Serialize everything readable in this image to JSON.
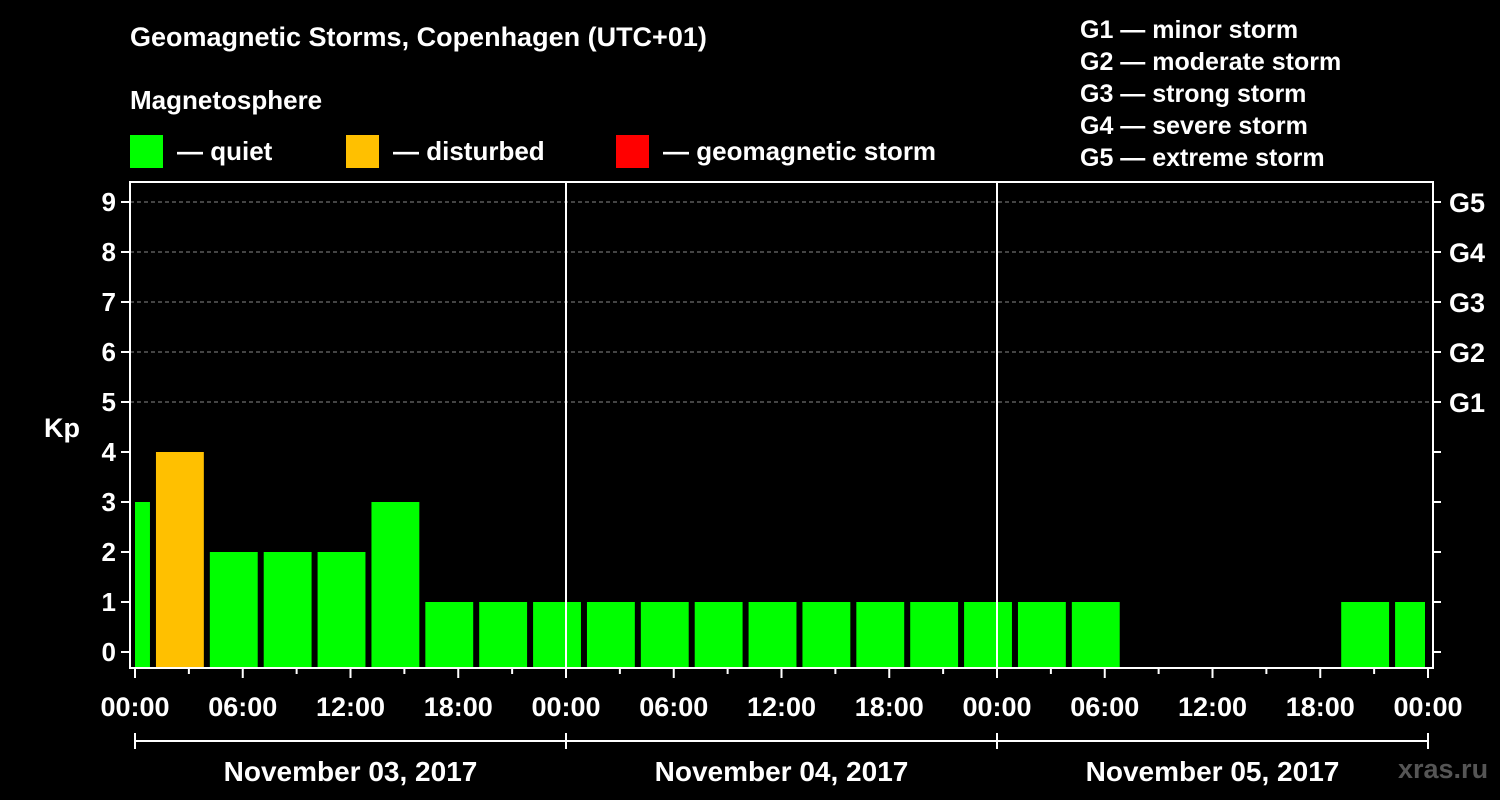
{
  "title": "Geomagnetic Storms, Copenhagen (UTC+01)",
  "subtitle": "Magnetosphere",
  "legend": [
    {
      "label": "— quiet",
      "color": "#00ff00"
    },
    {
      "label": "— disturbed",
      "color": "#ffc000"
    },
    {
      "label": "— geomagnetic storm",
      "color": "#ff0000"
    }
  ],
  "storm_scale": [
    "G1 — minor storm",
    "G2 — moderate storm",
    "G3 — strong storm",
    "G4 — severe storm",
    "G5 — extreme storm"
  ],
  "watermark": "xras.ru",
  "chart_data": {
    "type": "bar",
    "title": "Geomagnetic Storms, Copenhagen (UTC+01)",
    "ylabel": "Kp",
    "ylim": [
      0,
      9
    ],
    "yticks": [
      "0",
      "1",
      "2",
      "3",
      "4",
      "5",
      "6",
      "7",
      "8",
      "9"
    ],
    "right_tick_labels": [
      {
        "kp": 5,
        "label": "G1"
      },
      {
        "kp": 6,
        "label": "G2"
      },
      {
        "kp": 7,
        "label": "G3"
      },
      {
        "kp": 8,
        "label": "G4"
      },
      {
        "kp": 9,
        "label": "G5"
      }
    ],
    "x_range_hours": [
      0,
      72
    ],
    "x_tick_labels": [
      "00:00",
      "06:00",
      "12:00",
      "18:00",
      "00:00",
      "06:00",
      "12:00",
      "18:00",
      "00:00",
      "06:00",
      "12:00",
      "18:00",
      "00:00"
    ],
    "x_tick_step_hours": 6,
    "dates": [
      "November 03, 2017",
      "November 04, 2017",
      "November 05, 2017"
    ],
    "bars": [
      {
        "start_hour": 0,
        "end_hour": 1,
        "kp": 3,
        "status": "quiet"
      },
      {
        "start_hour": 1,
        "end_hour": 4,
        "kp": 4,
        "status": "disturbed"
      },
      {
        "start_hour": 4,
        "end_hour": 7,
        "kp": 2,
        "status": "quiet"
      },
      {
        "start_hour": 7,
        "end_hour": 10,
        "kp": 2,
        "status": "quiet"
      },
      {
        "start_hour": 10,
        "end_hour": 13,
        "kp": 2,
        "status": "quiet"
      },
      {
        "start_hour": 13,
        "end_hour": 16,
        "kp": 3,
        "status": "quiet"
      },
      {
        "start_hour": 16,
        "end_hour": 19,
        "kp": 1,
        "status": "quiet"
      },
      {
        "start_hour": 19,
        "end_hour": 22,
        "kp": 1,
        "status": "quiet"
      },
      {
        "start_hour": 22,
        "end_hour": 25,
        "kp": 1,
        "status": "quiet"
      },
      {
        "start_hour": 25,
        "end_hour": 28,
        "kp": 1,
        "status": "quiet"
      },
      {
        "start_hour": 28,
        "end_hour": 31,
        "kp": 1,
        "status": "quiet"
      },
      {
        "start_hour": 31,
        "end_hour": 34,
        "kp": 1,
        "status": "quiet"
      },
      {
        "start_hour": 34,
        "end_hour": 37,
        "kp": 1,
        "status": "quiet"
      },
      {
        "start_hour": 37,
        "end_hour": 40,
        "kp": 1,
        "status": "quiet"
      },
      {
        "start_hour": 40,
        "end_hour": 43,
        "kp": 1,
        "status": "quiet"
      },
      {
        "start_hour": 43,
        "end_hour": 46,
        "kp": 1,
        "status": "quiet"
      },
      {
        "start_hour": 46,
        "end_hour": 49,
        "kp": 1,
        "status": "quiet"
      },
      {
        "start_hour": 49,
        "end_hour": 52,
        "kp": 1,
        "status": "quiet"
      },
      {
        "start_hour": 52,
        "end_hour": 55,
        "kp": 1,
        "status": "quiet"
      },
      {
        "start_hour": 67,
        "end_hour": 70,
        "kp": 1,
        "status": "quiet"
      },
      {
        "start_hour": 70,
        "end_hour": 72,
        "kp": 1,
        "status": "quiet"
      }
    ],
    "status_colors": {
      "quiet": "#00ff00",
      "disturbed": "#ffc000",
      "storm": "#ff0000"
    }
  }
}
